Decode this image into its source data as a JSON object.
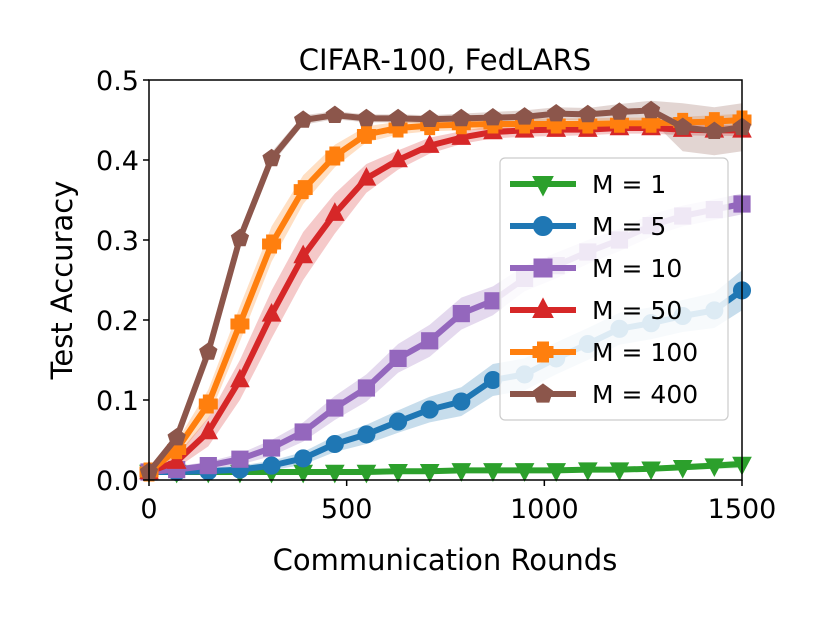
{
  "chart_data": {
    "type": "line",
    "title": "CIFAR-100, FedLARS",
    "xlabel": "Communication Rounds",
    "ylabel": "Test Accuracy",
    "xlim": [
      0,
      1500
    ],
    "ylim": [
      0,
      0.5
    ],
    "xticks": [
      0,
      500,
      1000,
      1500
    ],
    "xtick_labels": [
      "0",
      "500",
      "1000",
      "1500"
    ],
    "yticks": [
      0.0,
      0.1,
      0.2,
      0.3,
      0.4,
      0.5
    ],
    "ytick_labels": [
      "0.0",
      "0.1",
      "0.2",
      "0.3",
      "0.4",
      "0.5"
    ],
    "grid": false,
    "legend_position": "center-right",
    "x": [
      0,
      70,
      150,
      230,
      310,
      390,
      470,
      550,
      630,
      710,
      790,
      870,
      950,
      1030,
      1110,
      1190,
      1270,
      1350,
      1430,
      1500
    ],
    "series": [
      {
        "name": "M = 1",
        "color": "#2ca02c",
        "marker": "triangle-down",
        "values": [
          0.01,
          0.01,
          0.01,
          0.01,
          0.01,
          0.01,
          0.01,
          0.01,
          0.011,
          0.011,
          0.012,
          0.012,
          0.012,
          0.012,
          0.013,
          0.013,
          0.014,
          0.016,
          0.018,
          0.02
        ],
        "band": [
          0.002,
          0.002,
          0.002,
          0.002,
          0.002,
          0.002,
          0.002,
          0.002,
          0.002,
          0.002,
          0.002,
          0.002,
          0.002,
          0.002,
          0.003,
          0.003,
          0.003,
          0.004,
          0.004,
          0.005
        ]
      },
      {
        "name": "M = 5",
        "color": "#1f77b4",
        "marker": "circle",
        "values": [
          0.01,
          0.01,
          0.011,
          0.013,
          0.018,
          0.027,
          0.045,
          0.057,
          0.073,
          0.088,
          0.098,
          0.125,
          0.132,
          0.152,
          0.17,
          0.189,
          0.196,
          0.205,
          0.212,
          0.237
        ],
        "band": [
          0.003,
          0.003,
          0.004,
          0.005,
          0.006,
          0.008,
          0.01,
          0.012,
          0.014,
          0.016,
          0.018,
          0.02,
          0.02,
          0.02,
          0.02,
          0.02,
          0.02,
          0.02,
          0.022,
          0.025
        ]
      },
      {
        "name": "M = 10",
        "color": "#9467bd",
        "marker": "square",
        "values": [
          0.01,
          0.013,
          0.018,
          0.026,
          0.04,
          0.06,
          0.09,
          0.115,
          0.152,
          0.174,
          0.208,
          0.224,
          0.252,
          0.268,
          0.285,
          0.3,
          0.318,
          0.33,
          0.338,
          0.345
        ],
        "band": [
          0.003,
          0.004,
          0.005,
          0.007,
          0.01,
          0.012,
          0.015,
          0.017,
          0.018,
          0.02,
          0.02,
          0.018,
          0.016,
          0.016,
          0.015,
          0.014,
          0.014,
          0.013,
          0.013,
          0.013
        ]
      },
      {
        "name": "M = 50",
        "color": "#d62728",
        "marker": "triangle-up",
        "values": [
          0.01,
          0.023,
          0.06,
          0.125,
          0.207,
          0.28,
          0.333,
          0.377,
          0.4,
          0.418,
          0.428,
          0.435,
          0.437,
          0.438,
          0.438,
          0.44,
          0.44,
          0.438,
          0.437,
          0.437
        ],
        "band": [
          0.003,
          0.008,
          0.018,
          0.025,
          0.03,
          0.03,
          0.025,
          0.018,
          0.012,
          0.01,
          0.008,
          0.008,
          0.008,
          0.008,
          0.007,
          0.007,
          0.007,
          0.007,
          0.007,
          0.007
        ]
      },
      {
        "name": "M = 100",
        "color": "#ff7f0e",
        "marker": "plus",
        "values": [
          0.01,
          0.038,
          0.095,
          0.195,
          0.295,
          0.363,
          0.405,
          0.432,
          0.44,
          0.443,
          0.444,
          0.445,
          0.445,
          0.445,
          0.445,
          0.446,
          0.446,
          0.447,
          0.448,
          0.45
        ],
        "band": [
          0.003,
          0.01,
          0.018,
          0.022,
          0.022,
          0.018,
          0.014,
          0.01,
          0.008,
          0.007,
          0.007,
          0.007,
          0.007,
          0.007,
          0.007,
          0.007,
          0.007,
          0.007,
          0.008,
          0.008
        ]
      },
      {
        "name": "M = 400",
        "color": "#8c564b",
        "marker": "pentagon",
        "values": [
          0.01,
          0.053,
          0.16,
          0.302,
          0.402,
          0.45,
          0.456,
          0.452,
          0.452,
          0.451,
          0.452,
          0.453,
          0.454,
          0.458,
          0.457,
          0.46,
          0.462,
          0.441,
          0.436,
          0.441
        ],
        "band": [
          0.003,
          0.008,
          0.012,
          0.01,
          0.008,
          0.006,
          0.005,
          0.005,
          0.005,
          0.005,
          0.006,
          0.007,
          0.008,
          0.008,
          0.008,
          0.01,
          0.012,
          0.03,
          0.03,
          0.03
        ]
      }
    ]
  }
}
